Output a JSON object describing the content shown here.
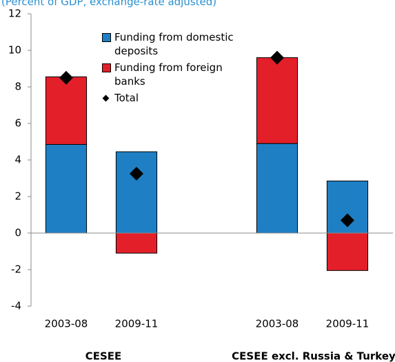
{
  "chart_data": {
    "type": "stacked_bar",
    "subtitle": "(Percent of GDP, exchange-rate adjusted)",
    "categories": [
      "2003-08",
      "2009-11",
      null,
      "2003-08",
      "2009-11"
    ],
    "group_labels": [
      "CESEE",
      "CESEE excl. Russia & Turkey"
    ],
    "series": [
      {
        "name": "Funding from domestic deposits",
        "color": "#1f7fc4",
        "values": [
          4.85,
          4.45,
          null,
          4.9,
          2.85
        ]
      },
      {
        "name": "Funding from foreign banks",
        "color": "#e3202a",
        "values": [
          3.7,
          -1.1,
          null,
          4.7,
          -2.05
        ]
      }
    ],
    "total": {
      "name": "Total",
      "color": "#000000",
      "values": [
        8.5,
        3.25,
        null,
        9.6,
        0.7
      ]
    },
    "ylim": [
      -4,
      12
    ],
    "yticks": [
      -4,
      -2,
      0,
      2,
      4,
      6,
      8,
      10,
      12
    ],
    "grid": false
  }
}
